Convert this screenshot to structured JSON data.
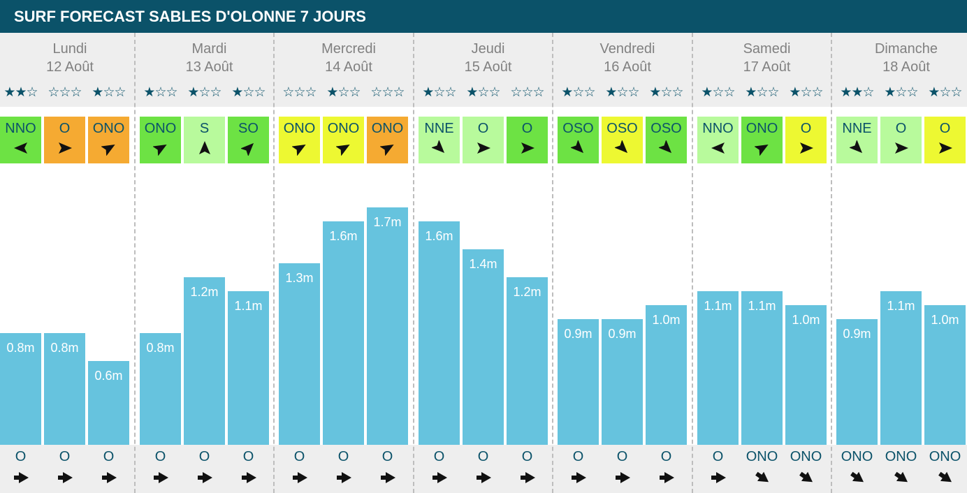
{
  "header": {
    "title": "SURF FORECAST SABLES D'OLONNE 7 JOURS"
  },
  "colors": {
    "header_bg": "#0b5269",
    "day_bg": "#eeeeee",
    "bar": "#66c3de",
    "text_dark": "#0b5269",
    "day_text": "#808080",
    "wind": {
      "green": "#6de244",
      "lightgreen": "#b8fa9c",
      "yellow": "#edf832",
      "orange": "#f5aa32"
    }
  },
  "chart_data": {
    "type": "bar",
    "title": "SURF FORECAST SABLES D'OLONNE 7 JOURS",
    "unit": "m",
    "ylim": [
      0,
      2.0
    ],
    "days": [
      {
        "name": "Lundi",
        "date": "12 Août",
        "slots": [
          {
            "stars": 2,
            "wind": "NNO",
            "wind_color": "green",
            "wind_arrow": "left",
            "height": 0.8,
            "height_label": "0.8m",
            "swell": "O",
            "swell_arrow": "right"
          },
          {
            "stars": 0,
            "wind": "O",
            "wind_color": "orange",
            "wind_arrow": "right",
            "height": 0.8,
            "height_label": "0.8m",
            "swell": "O",
            "swell_arrow": "right"
          },
          {
            "stars": 1,
            "wind": "ONO",
            "wind_color": "orange",
            "wind_arrow": "up-right",
            "height": 0.6,
            "height_label": "0.6m",
            "swell": "O",
            "swell_arrow": "right"
          }
        ]
      },
      {
        "name": "Mardi",
        "date": "13 Août",
        "slots": [
          {
            "stars": 1,
            "wind": "ONO",
            "wind_color": "green",
            "wind_arrow": "up-right",
            "height": 0.8,
            "height_label": "0.8m",
            "swell": "O",
            "swell_arrow": "right"
          },
          {
            "stars": 1,
            "wind": "S",
            "wind_color": "lightgreen",
            "wind_arrow": "up",
            "height": 1.2,
            "height_label": "1.2m",
            "swell": "O",
            "swell_arrow": "right"
          },
          {
            "stars": 1,
            "wind": "SO",
            "wind_color": "green",
            "wind_arrow": "up-right-steep",
            "height": 1.1,
            "height_label": "1.1m",
            "swell": "O",
            "swell_arrow": "right"
          }
        ]
      },
      {
        "name": "Mercredi",
        "date": "14 Août",
        "slots": [
          {
            "stars": 0,
            "wind": "ONO",
            "wind_color": "yellow",
            "wind_arrow": "up-right",
            "height": 1.3,
            "height_label": "1.3m",
            "swell": "O",
            "swell_arrow": "right"
          },
          {
            "stars": 1,
            "wind": "ONO",
            "wind_color": "yellow",
            "wind_arrow": "up-right",
            "height": 1.6,
            "height_label": "1.6m",
            "swell": "O",
            "swell_arrow": "right"
          },
          {
            "stars": 0,
            "wind": "ONO",
            "wind_color": "orange",
            "wind_arrow": "up-right",
            "height": 1.7,
            "height_label": "1.7m",
            "swell": "O",
            "swell_arrow": "right"
          }
        ]
      },
      {
        "name": "Jeudi",
        "date": "15 Août",
        "slots": [
          {
            "stars": 1,
            "wind": "NNE",
            "wind_color": "lightgreen",
            "wind_arrow": "down-right",
            "height": 1.6,
            "height_label": "1.6m",
            "swell": "O",
            "swell_arrow": "right"
          },
          {
            "stars": 1,
            "wind": "O",
            "wind_color": "lightgreen",
            "wind_arrow": "right",
            "height": 1.4,
            "height_label": "1.4m",
            "swell": "O",
            "swell_arrow": "right"
          },
          {
            "stars": 0,
            "wind": "O",
            "wind_color": "green",
            "wind_arrow": "right",
            "height": 1.2,
            "height_label": "1.2m",
            "swell": "O",
            "swell_arrow": "right"
          }
        ]
      },
      {
        "name": "Vendredi",
        "date": "16 Août",
        "slots": [
          {
            "stars": 1,
            "wind": "OSO",
            "wind_color": "green",
            "wind_arrow": "down-right",
            "height": 0.9,
            "height_label": "0.9m",
            "swell": "O",
            "swell_arrow": "right"
          },
          {
            "stars": 1,
            "wind": "OSO",
            "wind_color": "yellow",
            "wind_arrow": "down-right",
            "height": 0.9,
            "height_label": "0.9m",
            "swell": "O",
            "swell_arrow": "right"
          },
          {
            "stars": 1,
            "wind": "OSO",
            "wind_color": "green",
            "wind_arrow": "down-right",
            "height": 1.0,
            "height_label": "1.0m",
            "swell": "O",
            "swell_arrow": "right"
          }
        ]
      },
      {
        "name": "Samedi",
        "date": "17 Août",
        "slots": [
          {
            "stars": 1,
            "wind": "NNO",
            "wind_color": "lightgreen",
            "wind_arrow": "left",
            "height": 1.1,
            "height_label": "1.1m",
            "swell": "O",
            "swell_arrow": "right"
          },
          {
            "stars": 1,
            "wind": "ONO",
            "wind_color": "green",
            "wind_arrow": "up-right",
            "height": 1.1,
            "height_label": "1.1m",
            "swell": "ONO",
            "swell_arrow": "down-right"
          },
          {
            "stars": 1,
            "wind": "O",
            "wind_color": "yellow",
            "wind_arrow": "right",
            "height": 1.0,
            "height_label": "1.0m",
            "swell": "ONO",
            "swell_arrow": "down-right"
          }
        ]
      },
      {
        "name": "Dimanche",
        "date": "18 Août",
        "slots": [
          {
            "stars": 2,
            "wind": "NNE",
            "wind_color": "lightgreen",
            "wind_arrow": "down-right",
            "height": 0.9,
            "height_label": "0.9m",
            "swell": "ONO",
            "swell_arrow": "down-right"
          },
          {
            "stars": 1,
            "wind": "O",
            "wind_color": "lightgreen",
            "wind_arrow": "right",
            "height": 1.1,
            "height_label": "1.1m",
            "swell": "ONO",
            "swell_arrow": "down-right"
          },
          {
            "stars": 1,
            "wind": "O",
            "wind_color": "yellow",
            "wind_arrow": "right",
            "height": 1.0,
            "height_label": "1.0m",
            "swell": "ONO",
            "swell_arrow": "down-right"
          }
        ]
      }
    ]
  }
}
